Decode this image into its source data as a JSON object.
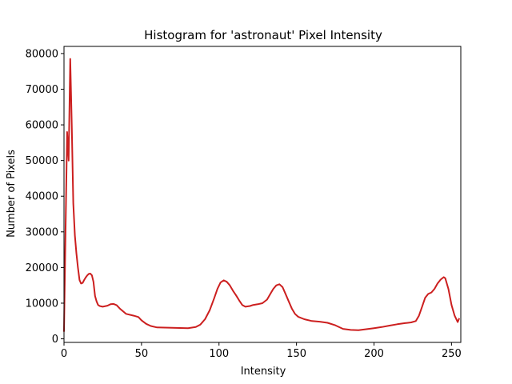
{
  "chart_data": {
    "type": "line",
    "title": "Histogram for 'astronaut' Pixel Intensity",
    "xlabel": "Intensity",
    "ylabel": "Number of Pixels",
    "xlim": [
      0,
      256
    ],
    "ylim": [
      -1000,
      82000
    ],
    "xticks": [
      0,
      50,
      100,
      150,
      200,
      250
    ],
    "yticks": [
      0,
      10000,
      20000,
      30000,
      40000,
      50000,
      60000,
      70000,
      80000
    ],
    "grid": false,
    "legend": "none",
    "series": [
      {
        "color": "#cc1f1f",
        "points": [
          [
            0,
            2000
          ],
          [
            1,
            30000
          ],
          [
            2,
            58000
          ],
          [
            3,
            50000
          ],
          [
            4,
            78500
          ],
          [
            5,
            60000
          ],
          [
            6,
            38000
          ],
          [
            7,
            29000
          ],
          [
            8,
            24000
          ],
          [
            9,
            20000
          ],
          [
            10,
            16500
          ],
          [
            11,
            15500
          ],
          [
            12,
            15700
          ],
          [
            13,
            16500
          ],
          [
            14,
            17200
          ],
          [
            15,
            17800
          ],
          [
            16,
            18200
          ],
          [
            17,
            18300
          ],
          [
            18,
            17800
          ],
          [
            19,
            16000
          ],
          [
            20,
            12000
          ],
          [
            21,
            10500
          ],
          [
            22,
            9500
          ],
          [
            23,
            9200
          ],
          [
            25,
            9000
          ],
          [
            28,
            9300
          ],
          [
            30,
            9700
          ],
          [
            32,
            9800
          ],
          [
            34,
            9400
          ],
          [
            36,
            8500
          ],
          [
            40,
            7000
          ],
          [
            45,
            6500
          ],
          [
            48,
            6100
          ],
          [
            50,
            5200
          ],
          [
            53,
            4200
          ],
          [
            56,
            3600
          ],
          [
            60,
            3200
          ],
          [
            70,
            3100
          ],
          [
            80,
            3000
          ],
          [
            85,
            3300
          ],
          [
            88,
            4000
          ],
          [
            91,
            5500
          ],
          [
            94,
            8000
          ],
          [
            97,
            11500
          ],
          [
            99,
            14000
          ],
          [
            101,
            15800
          ],
          [
            103,
            16400
          ],
          [
            105,
            16000
          ],
          [
            107,
            15000
          ],
          [
            109,
            13500
          ],
          [
            111,
            12200
          ],
          [
            113,
            10800
          ],
          [
            115,
            9500
          ],
          [
            117,
            9000
          ],
          [
            120,
            9200
          ],
          [
            122,
            9500
          ],
          [
            125,
            9700
          ],
          [
            128,
            10000
          ],
          [
            131,
            11000
          ],
          [
            133,
            12500
          ],
          [
            135,
            14000
          ],
          [
            137,
            15000
          ],
          [
            139,
            15300
          ],
          [
            141,
            14500
          ],
          [
            143,
            12500
          ],
          [
            145,
            10500
          ],
          [
            147,
            8500
          ],
          [
            149,
            7000
          ],
          [
            151,
            6200
          ],
          [
            155,
            5500
          ],
          [
            160,
            5000
          ],
          [
            165,
            4800
          ],
          [
            170,
            4500
          ],
          [
            175,
            3800
          ],
          [
            180,
            2800
          ],
          [
            185,
            2500
          ],
          [
            190,
            2400
          ],
          [
            195,
            2700
          ],
          [
            200,
            3000
          ],
          [
            205,
            3300
          ],
          [
            210,
            3700
          ],
          [
            215,
            4100
          ],
          [
            220,
            4400
          ],
          [
            224,
            4600
          ],
          [
            227,
            5000
          ],
          [
            229,
            6500
          ],
          [
            231,
            9000
          ],
          [
            233,
            11500
          ],
          [
            235,
            12600
          ],
          [
            237,
            13000
          ],
          [
            239,
            14000
          ],
          [
            241,
            15500
          ],
          [
            243,
            16600
          ],
          [
            245,
            17300
          ],
          [
            246,
            17000
          ],
          [
            248,
            14000
          ],
          [
            250,
            9500
          ],
          [
            252,
            6500
          ],
          [
            254,
            4700
          ],
          [
            255,
            5800
          ]
        ]
      }
    ]
  }
}
